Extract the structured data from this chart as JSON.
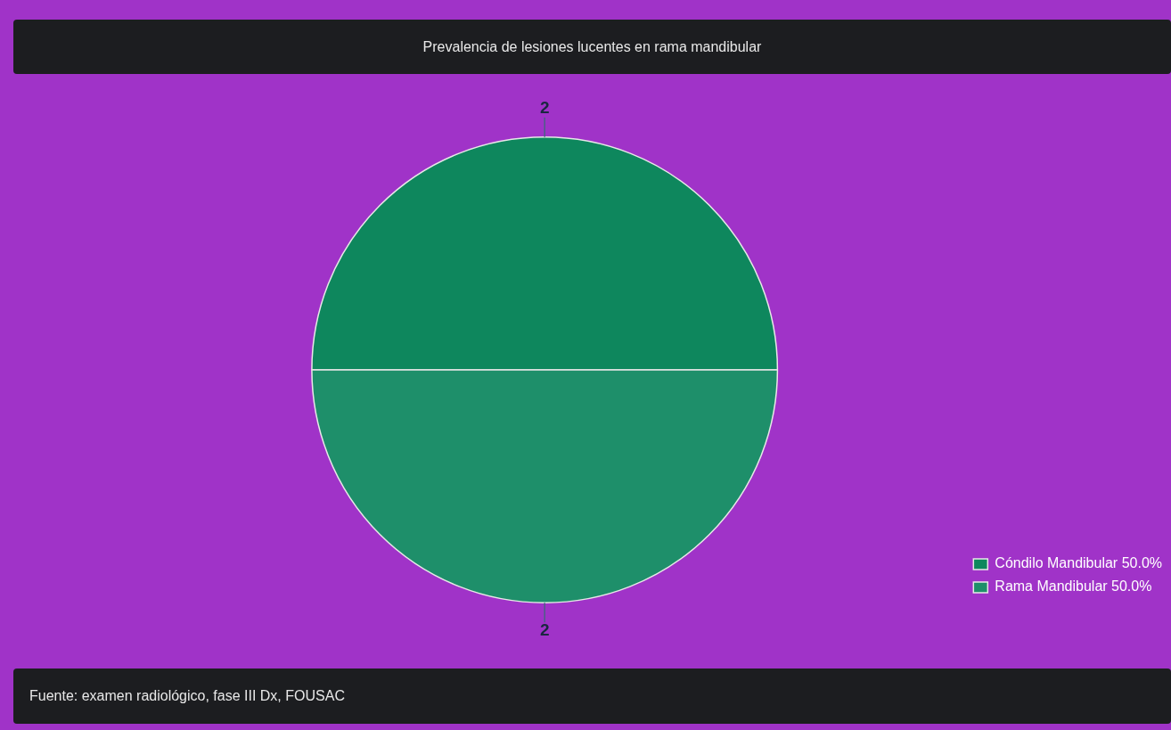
{
  "chart_data": {
    "type": "pie",
    "title": "Prevalencia de lesiones lucentes en rama mandibular",
    "categories": [
      "Cóndilo Mandibular 50.0%",
      "Rama Mandibular 50.0%"
    ],
    "values": [
      2,
      2
    ],
    "colors": [
      "#0e875d",
      "#1e8f6a"
    ],
    "data_labels": true,
    "legend": "bottom right",
    "annotations": [
      "Fuente: examen radiológico, fase III Dx, FOUSAC"
    ]
  }
}
